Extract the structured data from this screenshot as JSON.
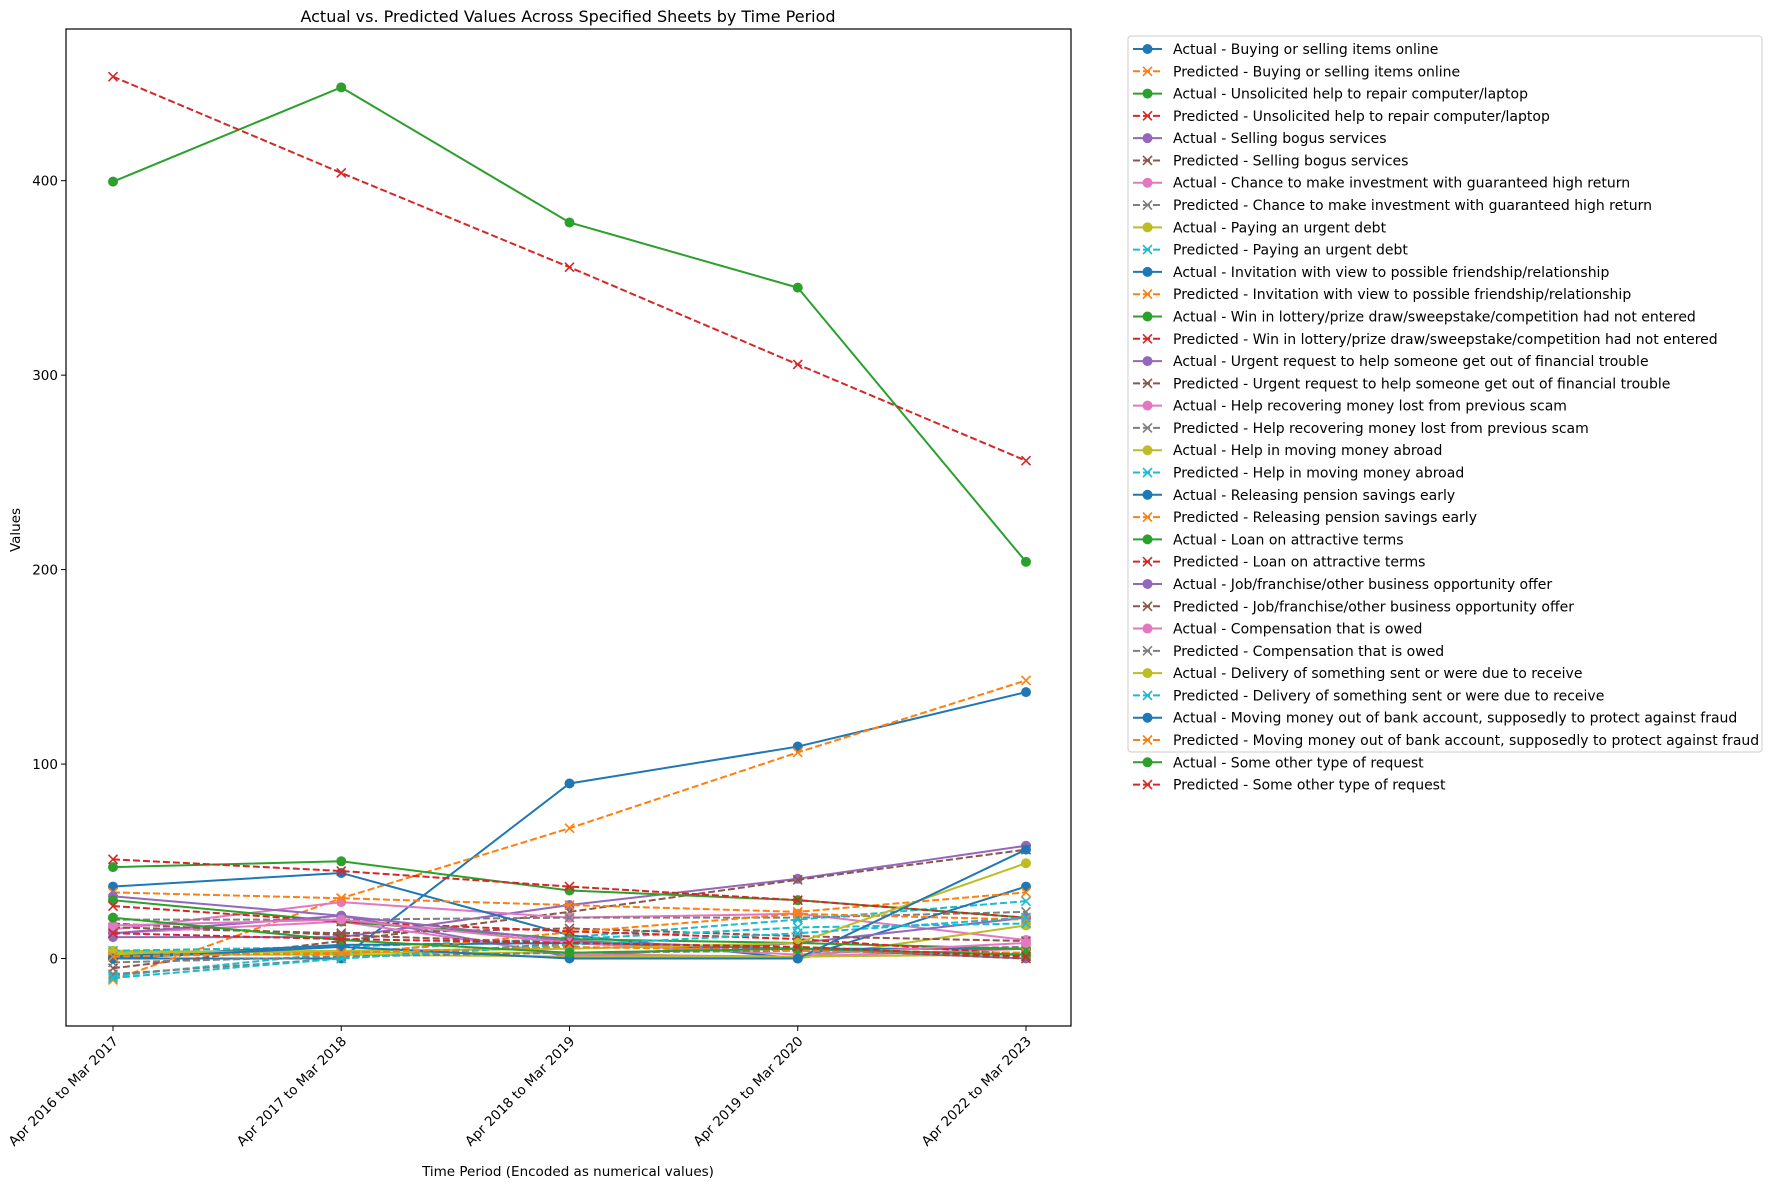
{
  "chart_data": {
    "type": "line",
    "title": "Actual vs. Predicted Values Across Specified Sheets by Time Period",
    "xlabel": "Time Period (Encoded as numerical values)",
    "ylabel": "Values",
    "categories": [
      "Apr 2016 to Mar 2017",
      "Apr 2017 to Mar 2018",
      "Apr 2018 to Mar 2019",
      "Apr 2019 to Mar 2020",
      "Apr 2022 to Mar 2023"
    ],
    "yticks": [
      0,
      100,
      200,
      300,
      400
    ],
    "ylim": [
      -34.7,
      478
    ],
    "grid": false,
    "legend_position": "outside-right-top",
    "series": [
      {
        "name": "Actual - Buying or selling items online",
        "color": "#1f77b4",
        "style": "actual",
        "values": [
          0,
          0,
          90,
          109,
          137
        ]
      },
      {
        "name": "Predicted - Buying or selling items online",
        "color": "#ff7f0e",
        "style": "predicted",
        "values": [
          -11,
          31,
          67,
          106,
          143
        ]
      },
      {
        "name": "Actual - Unsolicited help to repair computer/laptop",
        "color": "#2ca02c",
        "style": "actual",
        "values": [
          399.5,
          448,
          378.5,
          345,
          204
        ]
      },
      {
        "name": "Predicted - Unsolicited help to repair computer/laptop",
        "color": "#d62728",
        "style": "predicted",
        "values": [
          453.5,
          404,
          355.5,
          305.5,
          256
        ]
      },
      {
        "name": "Actual - Selling bogus services",
        "color": "#9467bd",
        "style": "actual",
        "values": [
          11,
          11,
          27.5,
          41,
          58
        ]
      },
      {
        "name": "Predicted - Selling bogus services",
        "color": "#8c564b",
        "style": "predicted",
        "values": [
          -5,
          9,
          24,
          40.5,
          56
        ]
      },
      {
        "name": "Actual - Chance to make investment with guaranteed high return",
        "color": "#e377c2",
        "style": "actual",
        "values": [
          15,
          29,
          21,
          23,
          9.5
        ]
      },
      {
        "name": "Predicted - Chance to make investment with guaranteed high return",
        "color": "#7f7f7f",
        "style": "predicted",
        "values": [
          20,
          20,
          21,
          21,
          24
        ]
      },
      {
        "name": "Actual - Paying an urgent debt",
        "color": "#bcbd22",
        "style": "actual",
        "values": [
          4,
          3,
          3,
          0,
          17
        ]
      },
      {
        "name": "Predicted - Paying an urgent debt",
        "color": "#17becf",
        "style": "predicted",
        "values": [
          -9,
          3,
          11,
          20,
          29.5
        ]
      },
      {
        "name": "Actual - Invitation with view to possible friendship/relationship",
        "color": "#1f77b4",
        "style": "actual",
        "values": [
          37,
          44,
          12,
          0,
          37
        ]
      },
      {
        "name": "Predicted - Invitation with view to possible friendship/relationship",
        "color": "#ff7f0e",
        "style": "predicted",
        "values": [
          34,
          31,
          27.5,
          24,
          34
        ]
      },
      {
        "name": "Actual - Win in lottery/prize draw/sweepstake/competition had not entered",
        "color": "#2ca02c",
        "style": "actual",
        "values": [
          47,
          50,
          35,
          30,
          21
        ]
      },
      {
        "name": "Predicted - Win in lottery/prize draw/sweepstake/competition had not entered",
        "color": "#d62728",
        "style": "predicted",
        "values": [
          51,
          45,
          37,
          30,
          21
        ]
      },
      {
        "name": "Actual - Urgent request to help someone get out of financial trouble",
        "color": "#9467bd",
        "style": "actual",
        "values": [
          32,
          22,
          1,
          8,
          21
        ]
      },
      {
        "name": "Predicted - Urgent request to help someone get out of financial trouble",
        "color": "#8c564b",
        "style": "predicted",
        "values": [
          16,
          13,
          15.5,
          11.5,
          9
        ]
      },
      {
        "name": "Actual - Help recovering money lost from previous scam",
        "color": "#e377c2",
        "style": "actual",
        "values": [
          13,
          19,
          2,
          1,
          5
        ]
      },
      {
        "name": "Predicted - Help recovering money lost from previous scam",
        "color": "#7f7f7f",
        "style": "predicted",
        "values": [
          -8,
          0,
          8,
          4,
          6
        ]
      },
      {
        "name": "Actual - Help in moving money abroad",
        "color": "#bcbd22",
        "style": "actual",
        "values": [
          2,
          2,
          1,
          1,
          2
        ]
      },
      {
        "name": "Predicted - Help in moving money abroad",
        "color": "#17becf",
        "style": "predicted",
        "values": [
          4,
          6,
          10,
          16,
          18
        ]
      },
      {
        "name": "Actual - Releasing pension savings early",
        "color": "#1f77b4",
        "style": "actual",
        "values": [
          1,
          7,
          8,
          5,
          5
        ]
      },
      {
        "name": "Predicted - Releasing pension savings early",
        "color": "#ff7f0e",
        "style": "predicted",
        "values": [
          3,
          2,
          13.5,
          23,
          20
        ]
      },
      {
        "name": "Actual - Loan on attractive terms",
        "color": "#2ca02c",
        "style": "actual",
        "values": [
          30,
          19,
          10,
          8,
          5
        ]
      },
      {
        "name": "Predicted - Loan on attractive terms",
        "color": "#d62728",
        "style": "predicted",
        "values": [
          27,
          19,
          14,
          10,
          2
        ]
      },
      {
        "name": "Actual - Job/franchise/other business opportunity offer",
        "color": "#9467bd",
        "style": "actual",
        "values": [
          13,
          22,
          9,
          5,
          0
        ]
      },
      {
        "name": "Predicted - Job/franchise/other business opportunity offer",
        "color": "#8c564b",
        "style": "predicted",
        "values": [
          18,
          12,
          8,
          5,
          0
        ]
      },
      {
        "name": "Actual - Compensation that is owed",
        "color": "#e377c2",
        "style": "actual",
        "values": [
          17,
          20,
          8,
          2,
          8
        ]
      },
      {
        "name": "Predicted - Compensation that is owed",
        "color": "#7f7f7f",
        "style": "predicted",
        "values": [
          -2,
          1,
          3,
          4,
          2
        ]
      },
      {
        "name": "Actual - Delivery of something sent or were due to receive",
        "color": "#bcbd22",
        "style": "actual",
        "values": [
          3,
          4,
          5,
          8,
          49
        ]
      },
      {
        "name": "Predicted - Delivery of something sent or were due to receive",
        "color": "#17becf",
        "style": "predicted",
        "values": [
          -10,
          0,
          7,
          13,
          21
        ]
      },
      {
        "name": "Actual - Moving money out of bank account, supposedly to protect against fraud",
        "color": "#1f77b4",
        "style": "actual",
        "values": [
          0,
          6,
          0,
          0,
          56
        ]
      },
      {
        "name": "Predicted - Moving money out of bank account, supposedly to protect against fraud",
        "color": "#ff7f0e",
        "style": "predicted",
        "values": [
          1,
          3,
          6,
          4,
          3
        ]
      },
      {
        "name": "Actual - Some other type of request",
        "color": "#2ca02c",
        "style": "actual",
        "values": [
          21,
          9.5,
          3,
          5,
          2
        ]
      },
      {
        "name": "Predicted - Some other type of request",
        "color": "#d62728",
        "style": "predicted",
        "values": [
          13,
          10,
          8,
          6,
          1
        ]
      }
    ]
  }
}
